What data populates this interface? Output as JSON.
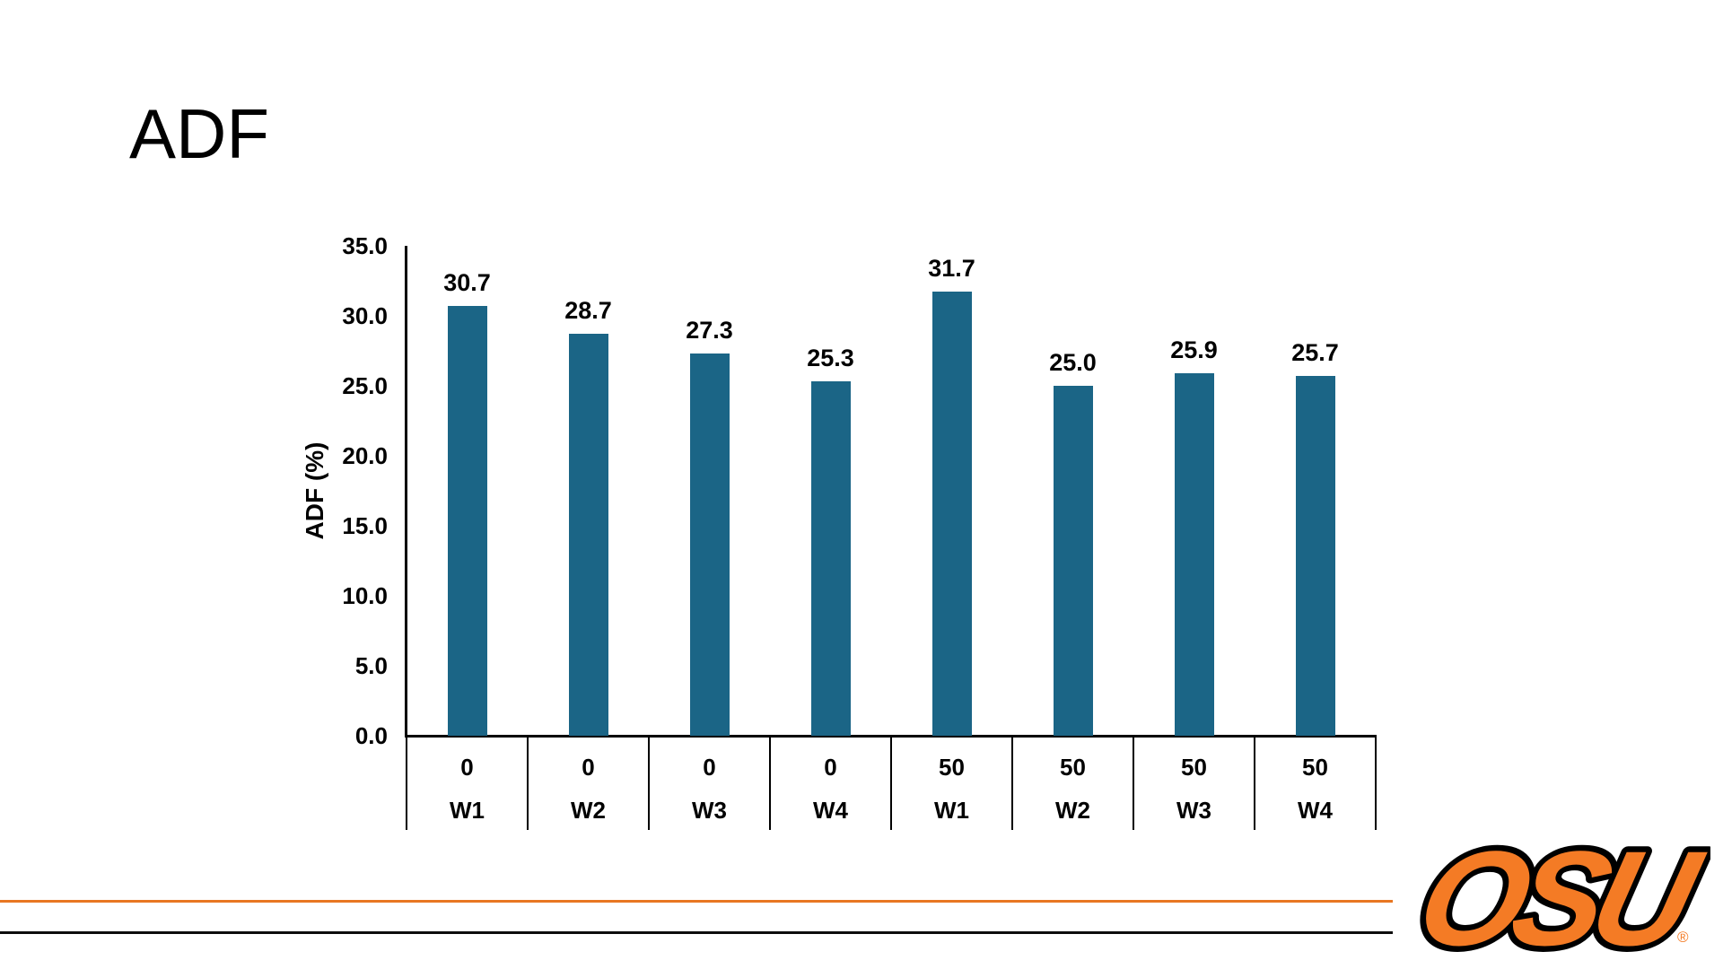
{
  "slide": {
    "title": "ADF"
  },
  "chart_data": {
    "type": "bar",
    "title": "ADF",
    "xlabel": "",
    "ylabel": "ADF (%)",
    "ylim": [
      0,
      35
    ],
    "ytick_interval": 5,
    "yticks": [
      "35.0",
      "30.0",
      "25.0",
      "20.0",
      "15.0",
      "10.0",
      "5.0",
      "0.0"
    ],
    "categories": [
      "0 W1",
      "0 W2",
      "0 W3",
      "0 W4",
      "50 W1",
      "50 W2",
      "50 W3",
      "50 W4"
    ],
    "x_axis_table": {
      "group_row": [
        "0",
        "0",
        "0",
        "0",
        "50",
        "50",
        "50",
        "50"
      ],
      "week_row": [
        "W1",
        "W2",
        "W3",
        "W4",
        "W1",
        "W2",
        "W3",
        "W4"
      ]
    },
    "values": [
      30.7,
      28.7,
      27.3,
      25.3,
      31.7,
      25.0,
      25.9,
      25.7
    ],
    "value_labels": [
      "30.7",
      "28.7",
      "27.3",
      "25.3",
      "31.7",
      "25.0",
      "25.9",
      "25.7"
    ],
    "bar_color": "#1B6586",
    "grid": false,
    "legend": false
  },
  "footer": {
    "orange_line_color": "#E87722",
    "black_line_color": "#0D0D0D"
  },
  "logo": {
    "text": "OSU",
    "registered_mark": "®",
    "orange": "#F47B25",
    "outline": "#000000"
  }
}
